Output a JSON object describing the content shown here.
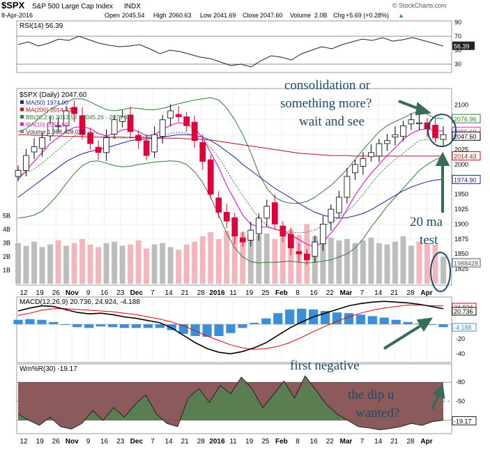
{
  "header": {
    "symbol": "$SPX",
    "name": "S&P 500 Large Cap Index",
    "exchange": "INDX",
    "date": "8-Apr-2016",
    "open_label": "Open",
    "open": "2045.54",
    "high_label": "High",
    "high": "2060.63",
    "low_label": "Low",
    "low": "2041.69",
    "close_label": "Close",
    "close": "2047.60",
    "volume_label": "Volume",
    "volume": "2.0B",
    "chg_label": "Chg",
    "chg": "+5.69 (+0.28%)",
    "watermark": "© StockCharts.com",
    "direction_icon": "up-triangle-icon"
  },
  "colors": {
    "price_up": "#ffffff",
    "price_down": "#e0003a",
    "ma50": "#1f1fa0",
    "ma200": "#b01020",
    "bb": "#2e7d2e",
    "ma10": "#e020d0",
    "macd": "#000000",
    "signal": "#e00000",
    "hist": "#3a8fd8",
    "wr_fill": "#5b7d52",
    "wr_neg_fill": "#8c5a5a",
    "annotation": "#1c4a6a"
  },
  "annotations": {
    "consolidation_line1": "consolidation or",
    "consolidation_line2": "something more?",
    "consolidation_line3": "wait and see",
    "ma_test_line1": "20 ma",
    "ma_test_line2": "test",
    "first_negative": "first negative",
    "dip_line1": "the dip u",
    "dip_line2": "wanted?"
  },
  "chart_data": [
    {
      "type": "line",
      "panel": "rsi",
      "title": "RSI(14) 56.39",
      "label": "RSI(14)",
      "last_value": "56.39",
      "ylim": [
        20,
        90
      ],
      "reference_lines": [
        70,
        30
      ],
      "ytick_labels": [
        "90",
        "70",
        "50",
        "30"
      ],
      "series": [
        {
          "name": "RSI(14)",
          "values": [
            58,
            62,
            56,
            60,
            66,
            64,
            70,
            65,
            60,
            57,
            55,
            56,
            58,
            52,
            45,
            50,
            48,
            44,
            40,
            38,
            33,
            28,
            30,
            26,
            35,
            42,
            40,
            36,
            45,
            50,
            55,
            52,
            58,
            62,
            66,
            64,
            68,
            63,
            65,
            68,
            64,
            60,
            56
          ]
        }
      ]
    },
    {
      "type": "candlestick",
      "panel": "price",
      "title": "$SPX (Daily) 2047.60",
      "ylim": [
        1800,
        2125
      ],
      "ytick_labels": [
        "2100",
        "2075",
        "2050",
        "2025",
        "2000",
        "1975",
        "1950",
        "1925",
        "1900",
        "1875",
        "1850",
        "1825"
      ],
      "volume_tick_labels": [
        "5B",
        "4B",
        "3B",
        "2B",
        "1B"
      ],
      "price_tags": [
        "2076.96",
        "2055.60",
        "2047.60",
        "2014.43",
        "1974.90",
        "1988428"
      ],
      "legend": [
        {
          "name": "$SPX (Daily)",
          "value": "2047.60",
          "color": "#000000"
        },
        {
          "name": "MA(50)",
          "value": "1974.90",
          "color": "#1f1fa0"
        },
        {
          "name": "MA(200)",
          "value": "2014.43",
          "color": "#b01020"
        },
        {
          "name": "BB(20,2.0)",
          "value": "2013.56 - 2045.26 - 2076.96",
          "color": "#2e7d2e"
        },
        {
          "name": "MA(10)",
          "value": "2055.60",
          "color": "#e020d0"
        },
        {
          "name": "Volume",
          "value": "1,988,428,032",
          "color": "#888888"
        }
      ],
      "close": [
        1990,
        2015,
        2030,
        2045,
        2070,
        2065,
        2090,
        2085,
        2050,
        2035,
        2020,
        2045,
        2075,
        2080,
        2055,
        2040,
        2015,
        2050,
        2075,
        2090,
        2080,
        2065,
        2040,
        2005,
        1950,
        1920,
        1905,
        1880,
        1870,
        1890,
        1910,
        1930,
        1900,
        1880,
        1860,
        1850,
        1840,
        1870,
        1900,
        1925,
        1945,
        1980,
        2000,
        2010,
        2020,
        2035,
        2040,
        2050,
        2065,
        2075,
        2070,
        2060,
        2045,
        2050
      ],
      "ma50": [
        1945,
        1955,
        1965,
        1975,
        1985,
        1995,
        2005,
        2012,
        2018,
        2022,
        2025,
        2028,
        2032,
        2036,
        2040,
        2042,
        2043,
        2044,
        2046,
        2048,
        2050,
        2050,
        2049,
        2046,
        2040,
        2032,
        2022,
        2012,
        2000,
        1990,
        1980,
        1970,
        1960,
        1952,
        1944,
        1935,
        1927,
        1920,
        1915,
        1912,
        1910,
        1911,
        1914,
        1918,
        1924,
        1932,
        1940,
        1948,
        1956,
        1962,
        1967,
        1971,
        1974,
        1975
      ],
      "ma200": [
        2050,
        2050,
        2049,
        2049,
        2048,
        2048,
        2047,
        2047,
        2047,
        2046,
        2046,
        2046,
        2046,
        2046,
        2045,
        2045,
        2045,
        2044,
        2044,
        2044,
        2044,
        2043,
        2043,
        2042,
        2041,
        2039,
        2037,
        2035,
        2033,
        2031,
        2029,
        2027,
        2025,
        2023,
        2021,
        2019,
        2018,
        2017,
        2016,
        2015,
        2015,
        2015,
        2014,
        2014,
        2014,
        2014,
        2014,
        2014,
        2014,
        2014,
        2014,
        2014,
        2014,
        2014
      ],
      "ma10": [
        1975,
        1990,
        2005,
        2020,
        2035,
        2045,
        2055,
        2062,
        2064,
        2060,
        2052,
        2048,
        2052,
        2058,
        2060,
        2055,
        2048,
        2050,
        2058,
        2066,
        2070,
        2068,
        2060,
        2045,
        2020,
        1995,
        1965,
        1940,
        1915,
        1900,
        1895,
        1895,
        1892,
        1888,
        1882,
        1874,
        1866,
        1862,
        1870,
        1885,
        1902,
        1925,
        1948,
        1968,
        1985,
        2000,
        2015,
        2028,
        2042,
        2052,
        2058,
        2060,
        2057,
        2056
      ],
      "bb_upper": [
        2055,
        2060,
        2070,
        2082,
        2092,
        2100,
        2105,
        2110,
        2110,
        2105,
        2098,
        2092,
        2090,
        2092,
        2095,
        2094,
        2092,
        2092,
        2094,
        2098,
        2102,
        2105,
        2108,
        2110,
        2112,
        2108,
        2095,
        2075,
        2050,
        2020,
        1985,
        1960,
        1945,
        1938,
        1935,
        1935,
        1938,
        1945,
        1955,
        1965,
        1978,
        1992,
        2008,
        2025,
        2040,
        2055,
        2065,
        2072,
        2078,
        2085,
        2090,
        2084,
        2078,
        2077
      ],
      "bb_lower": [
        1910,
        1912,
        1915,
        1922,
        1935,
        1950,
        1968,
        1985,
        1998,
        2005,
        2006,
        2002,
        1998,
        1996,
        1997,
        2000,
        2002,
        2004,
        2005,
        2006,
        2005,
        2000,
        1988,
        1970,
        1945,
        1915,
        1885,
        1860,
        1845,
        1837,
        1835,
        1836,
        1836,
        1837,
        1838,
        1836,
        1835,
        1836,
        1838,
        1840,
        1845,
        1850,
        1860,
        1875,
        1895,
        1912,
        1930,
        1945,
        1960,
        1975,
        1990,
        2000,
        2008,
        2014
      ],
      "volume_billions": [
        3.0,
        2.8,
        3.1,
        2.7,
        2.9,
        3.2,
        2.8,
        3.0,
        3.3,
        2.9,
        2.7,
        3.0,
        3.1,
        2.8,
        2.9,
        3.2,
        2.6,
        2.9,
        3.0,
        2.7,
        2.5,
        2.9,
        3.1,
        3.5,
        3.8,
        3.3,
        3.9,
        4.2,
        3.8,
        3.5,
        3.6,
        3.7,
        3.3,
        3.9,
        4.0,
        3.6,
        4.4,
        3.5,
        3.9,
        3.4,
        3.2,
        3.3,
        3.0,
        3.2,
        3.4,
        3.0,
        2.9,
        3.1,
        3.5,
        2.8,
        3.1,
        3.0,
        2.9,
        2.0
      ]
    },
    {
      "type": "line",
      "panel": "macd",
      "title": "MACD(12,26,9) 20.736, 24.924, -4.188",
      "label": "MACD(12,26,9)",
      "values_text": [
        "20.736",
        "24.924",
        "-4.188"
      ],
      "ylim": [
        -50,
        35
      ],
      "ytick_labels": [
        "-20",
        "-40"
      ],
      "series": [
        {
          "name": "MACD",
          "values": [
            18,
            22,
            25,
            24,
            20,
            16,
            14,
            15,
            13,
            10,
            8,
            5,
            2,
            -5,
            -15,
            -25,
            -33,
            -38,
            -40,
            -37,
            -32,
            -25,
            -15,
            -5,
            3,
            10,
            15,
            20,
            25,
            28,
            30,
            31,
            30,
            29,
            27,
            24,
            21
          ]
        },
        {
          "name": "Signal",
          "values": [
            12,
            15,
            19,
            21,
            21,
            20,
            19,
            18,
            17,
            15,
            13,
            10,
            7,
            3,
            -2,
            -9,
            -16,
            -22,
            -28,
            -32,
            -34,
            -33,
            -30,
            -25,
            -18,
            -10,
            -3,
            4,
            10,
            15,
            19,
            22,
            24,
            26,
            26,
            25,
            25
          ]
        },
        {
          "name": "Histogram",
          "values": [
            6,
            7,
            6,
            3,
            -1,
            -4,
            -5,
            -3,
            -4,
            -5,
            -5,
            -5,
            -5,
            -8,
            -13,
            -16,
            -17,
            -16,
            -12,
            -5,
            2,
            8,
            15,
            20,
            21,
            20,
            18,
            16,
            15,
            13,
            11,
            9,
            6,
            3,
            1,
            -1,
            -4
          ]
        }
      ]
    },
    {
      "type": "area",
      "panel": "williams_r",
      "title": "Wm%R(30) -19.17",
      "label": "Wm%R(30)",
      "last_value": "-19.17",
      "ylim": [
        -100,
        0
      ],
      "reference_lines": [
        -20,
        -80
      ],
      "ytick_labels": [
        "-50",
        "-80"
      ],
      "series": [
        {
          "name": "Wm%R(30)",
          "values": [
            -30,
            -20,
            -12,
            -25,
            -10,
            -6,
            -15,
            -35,
            -20,
            -40,
            -25,
            -45,
            -60,
            -30,
            -15,
            -10,
            -55,
            -70,
            -48,
            -75,
            -62,
            -88,
            -70,
            -40,
            -60,
            -82,
            -55,
            -90,
            -68,
            -45,
            -30,
            -20,
            -10,
            -8,
            -5,
            -7,
            -10,
            -15,
            -12,
            -18,
            -20
          ]
        }
      ]
    },
    {
      "type": "axis",
      "panel": "x_axis",
      "tick_labels": [
        "12",
        "19",
        "26",
        "Nov",
        "9",
        "16",
        "23",
        "Dec",
        "7",
        "14",
        "21",
        "28",
        "2016",
        "11",
        "19",
        "25",
        "Feb",
        "8",
        "16",
        "22",
        "Mar",
        "7",
        "14",
        "21",
        "28",
        "Apr"
      ]
    }
  ]
}
